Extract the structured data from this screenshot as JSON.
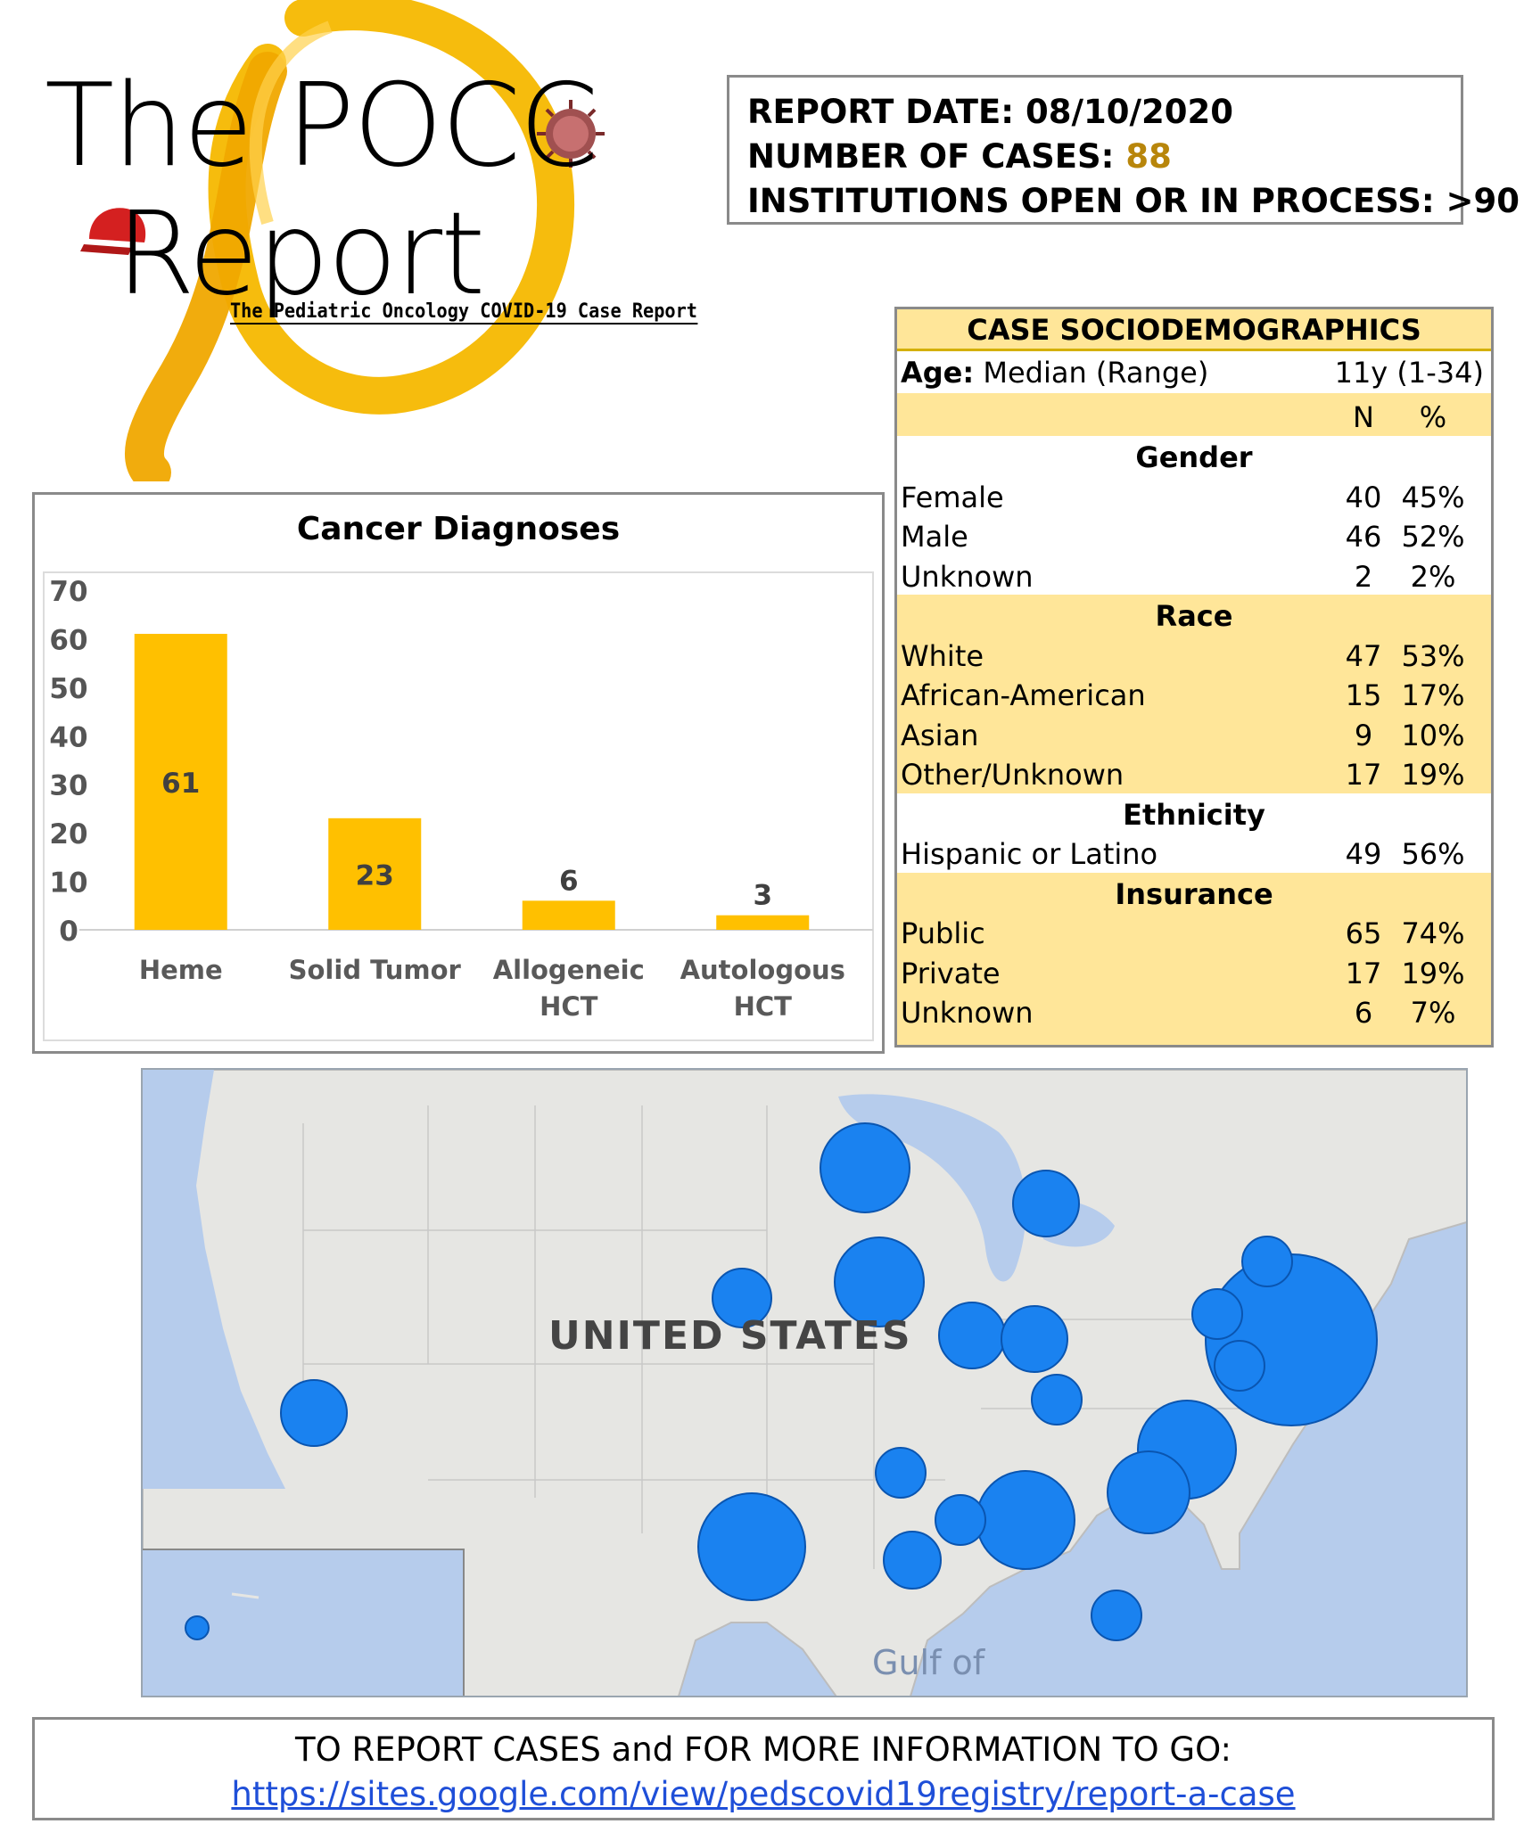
{
  "logo": {
    "title_line1": "The POCC",
    "title_line2": "Report",
    "subtitle": "The Pediatric Oncology COVID-19 Case Report",
    "ribbon_color": "#f5b800",
    "cap_color": "#d42020"
  },
  "report": {
    "date_label": "REPORT DATE: 08/10/2020",
    "cases_label": "NUMBER OF CASES: ",
    "cases_value": "88",
    "institutions_label": "INSTITUTIONS OPEN OR IN PROCESS: >90"
  },
  "socio": {
    "title": "CASE SOCIODEMOGRAPHICS",
    "age_label": "Age:",
    "age_desc": " Median (Range)",
    "age_value": "11y (1-34)",
    "col_n": "N",
    "col_pct": "%",
    "sections": [
      {
        "header": "Gender",
        "rows": [
          {
            "label": "Female",
            "n": "40",
            "pct": "45%"
          },
          {
            "label": "Male",
            "n": "46",
            "pct": "52%"
          },
          {
            "label": "Unknown",
            "n": "2",
            "pct": "2%"
          }
        ]
      },
      {
        "header": "Race",
        "rows": [
          {
            "label": "White",
            "n": "47",
            "pct": "53%"
          },
          {
            "label": "African-American",
            "n": "15",
            "pct": "17%"
          },
          {
            "label": "Asian",
            "n": "9",
            "pct": "10%"
          },
          {
            "label": "Other/Unknown",
            "n": "17",
            "pct": "19%"
          }
        ]
      },
      {
        "header": "Ethnicity",
        "rows": [
          {
            "label": "Hispanic or Latino",
            "n": "49",
            "pct": "56%"
          }
        ]
      },
      {
        "header": "Insurance",
        "rows": [
          {
            "label": "Public",
            "n": "65",
            "pct": "74%"
          },
          {
            "label": "Private",
            "n": "17",
            "pct": "19%"
          },
          {
            "label": "Unknown",
            "n": "6",
            "pct": "7%"
          }
        ]
      }
    ]
  },
  "chart_data": {
    "type": "bar",
    "title": "Cancer Diagnoses",
    "categories": [
      "Heme",
      "Solid Tumor",
      "Allogeneic HCT",
      "Autologous HCT"
    ],
    "category_lines": [
      [
        "Heme"
      ],
      [
        "Solid Tumor"
      ],
      [
        "Allogeneic",
        "HCT"
      ],
      [
        "Autologous",
        "HCT"
      ]
    ],
    "values": [
      61,
      23,
      6,
      3
    ],
    "ylim": [
      0,
      70
    ],
    "yticks": [
      0,
      10,
      20,
      30,
      40,
      50,
      60,
      70
    ],
    "bar_color": "#ffc000",
    "grid": false
  },
  "map": {
    "label": "UNITED STATES",
    "gulf_label": "Gulf of",
    "land_color": "#e6e6e3",
    "water_color": "#b6ccec",
    "marker_color": "#1a82f0"
  },
  "footer": {
    "line1": "TO REPORT CASES and FOR MORE INFORMATION TO GO:",
    "link": "https://sites.google.com/view/pedscovid19registry/report-a-case"
  }
}
